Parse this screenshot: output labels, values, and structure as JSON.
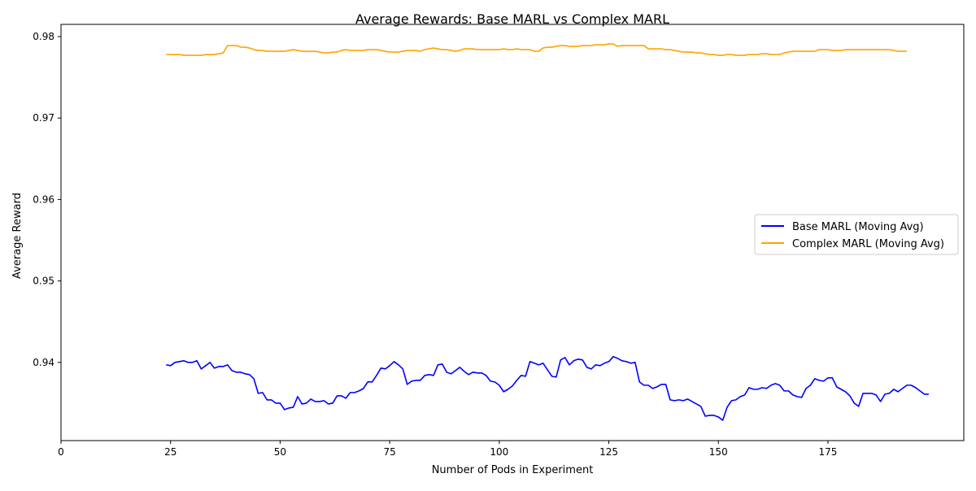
{
  "chart_data": {
    "type": "line",
    "title": "Average Rewards: Base MARL vs Complex MARL",
    "xlabel": "Number of Pods in Experiment",
    "ylabel": "Average Reward",
    "xlim": [
      0,
      206
    ],
    "ylim": [
      0.9304,
      0.9815
    ],
    "x_ticks": [
      0,
      25,
      50,
      75,
      100,
      125,
      150,
      175
    ],
    "y_ticks": [
      0.94,
      0.95,
      0.96,
      0.97,
      0.98
    ],
    "grid": false,
    "legend_position": "center-right",
    "x_start": 24,
    "series": [
      {
        "name": "Base MARL (Moving Avg)",
        "color": "#0000ff",
        "values": [
          0.9397,
          0.9396,
          0.94,
          0.9401,
          0.9402,
          0.94,
          0.94,
          0.9402,
          0.9392,
          0.9396,
          0.94,
          0.9393,
          0.9395,
          0.9395,
          0.9397,
          0.939,
          0.9388,
          0.9388,
          0.9386,
          0.9385,
          0.938,
          0.9362,
          0.9363,
          0.9354,
          0.9354,
          0.935,
          0.935,
          0.9342,
          0.9344,
          0.9345,
          0.9358,
          0.9349,
          0.935,
          0.9355,
          0.9352,
          0.9352,
          0.9353,
          0.9349,
          0.935,
          0.9359,
          0.9359,
          0.9356,
          0.9363,
          0.9363,
          0.9365,
          0.9368,
          0.9376,
          0.9376,
          0.9384,
          0.9393,
          0.9392,
          0.9396,
          0.9401,
          0.9397,
          0.9392,
          0.9373,
          0.9377,
          0.9378,
          0.9378,
          0.9384,
          0.9385,
          0.9384,
          0.9397,
          0.9398,
          0.9388,
          0.9386,
          0.939,
          0.9394,
          0.9389,
          0.9385,
          0.9388,
          0.9387,
          0.9387,
          0.9384,
          0.9377,
          0.9376,
          0.9372,
          0.9364,
          0.9367,
          0.9371,
          0.9378,
          0.9384,
          0.9383,
          0.9401,
          0.9399,
          0.9397,
          0.9399,
          0.9391,
          0.9383,
          0.9382,
          0.9403,
          0.9406,
          0.9397,
          0.9402,
          0.9404,
          0.9403,
          0.9394,
          0.9392,
          0.9397,
          0.9396,
          0.9399,
          0.9401,
          0.9407,
          0.9405,
          0.9402,
          0.9401,
          0.9399,
          0.94,
          0.9376,
          0.9372,
          0.9372,
          0.9368,
          0.937,
          0.9373,
          0.9373,
          0.9354,
          0.9353,
          0.9354,
          0.9353,
          0.9355,
          0.9352,
          0.9349,
          0.9346,
          0.9334,
          0.9335,
          0.9335,
          0.9333,
          0.9329,
          0.9345,
          0.9353,
          0.9354,
          0.9358,
          0.936,
          0.9369,
          0.9367,
          0.9367,
          0.9369,
          0.9368,
          0.9372,
          0.9374,
          0.9372,
          0.9365,
          0.9365,
          0.936,
          0.9358,
          0.9357,
          0.9368,
          0.9372,
          0.938,
          0.9378,
          0.9377,
          0.9381,
          0.9381,
          0.937,
          0.9367,
          0.9364,
          0.9359,
          0.935,
          0.9346,
          0.9362,
          0.9362,
          0.9362,
          0.936,
          0.9352,
          0.9361,
          0.9362,
          0.9367,
          0.9364,
          0.9368,
          0.9372,
          0.9372,
          0.9369,
          0.9365,
          0.9361,
          0.9361
        ]
      },
      {
        "name": "Complex MARL (Moving Avg)",
        "color": "#ffa500",
        "values": [
          0.9778,
          0.9778,
          0.9778,
          0.9778,
          0.9777,
          0.9777,
          0.9777,
          0.9777,
          0.9777,
          0.9778,
          0.9778,
          0.9778,
          0.9779,
          0.978,
          0.9789,
          0.9789,
          0.9789,
          0.9787,
          0.9787,
          0.9786,
          0.9784,
          0.9783,
          0.9783,
          0.9782,
          0.9782,
          0.9782,
          0.9782,
          0.9782,
          0.9783,
          0.9784,
          0.9783,
          0.9782,
          0.9782,
          0.9782,
          0.9782,
          0.9781,
          0.978,
          0.978,
          0.9781,
          0.9781,
          0.9783,
          0.9784,
          0.9783,
          0.9783,
          0.9783,
          0.9783,
          0.9784,
          0.9784,
          0.9784,
          0.9783,
          0.9782,
          0.9781,
          0.9781,
          0.9781,
          0.9782,
          0.9783,
          0.9783,
          0.9783,
          0.9782,
          0.9784,
          0.9785,
          0.9786,
          0.9785,
          0.9784,
          0.9784,
          0.9783,
          0.9782,
          0.9783,
          0.9785,
          0.9785,
          0.9785,
          0.9784,
          0.9784,
          0.9784,
          0.9784,
          0.9784,
          0.9784,
          0.9785,
          0.9784,
          0.9784,
          0.9785,
          0.9784,
          0.9784,
          0.9784,
          0.9782,
          0.9782,
          0.9786,
          0.9787,
          0.9787,
          0.9788,
          0.9789,
          0.9789,
          0.9788,
          0.9788,
          0.9788,
          0.9789,
          0.9789,
          0.9789,
          0.979,
          0.979,
          0.979,
          0.9791,
          0.9791,
          0.9788,
          0.9789,
          0.9789,
          0.9789,
          0.9789,
          0.9789,
          0.9789,
          0.9785,
          0.9785,
          0.9785,
          0.9785,
          0.9784,
          0.9784,
          0.9783,
          0.9782,
          0.9781,
          0.9781,
          0.9781,
          0.978,
          0.978,
          0.9779,
          0.9778,
          0.9778,
          0.9777,
          0.9777,
          0.9778,
          0.9778,
          0.9777,
          0.9777,
          0.9777,
          0.9778,
          0.9778,
          0.9778,
          0.9779,
          0.9779,
          0.9778,
          0.9778,
          0.9778,
          0.978,
          0.9781,
          0.9782,
          0.9782,
          0.9782,
          0.9782,
          0.9782,
          0.9782,
          0.9784,
          0.9784,
          0.9784,
          0.9783,
          0.9783,
          0.9783,
          0.9784,
          0.9784,
          0.9784,
          0.9784,
          0.9784,
          0.9784,
          0.9784,
          0.9784,
          0.9784,
          0.9784,
          0.9784,
          0.9783,
          0.9782,
          0.9782,
          0.9782
        ]
      }
    ]
  }
}
